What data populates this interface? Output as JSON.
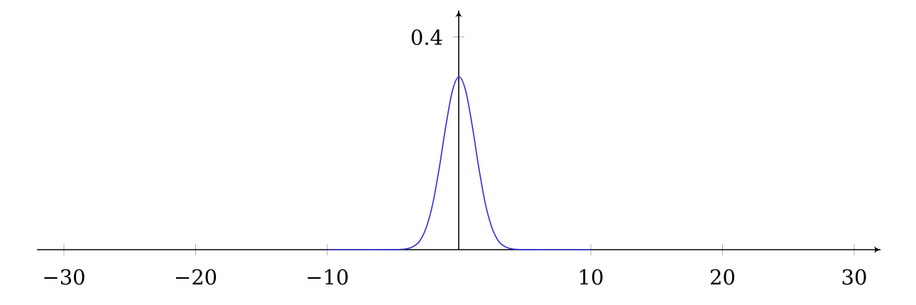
{
  "chart_data": {
    "type": "line",
    "title": "",
    "xlabel": "",
    "ylabel": "",
    "xlim": [
      -30,
      30
    ],
    "ylim": [
      0,
      0.4
    ],
    "x_ticks": [
      -30,
      -20,
      -10,
      10,
      20,
      30
    ],
    "x_tick_labels": [
      "−30",
      "−20",
      "−10",
      "10",
      "20",
      "30"
    ],
    "y_ticks": [
      0.4
    ],
    "y_tick_labels": [
      "0.4"
    ],
    "grid": false,
    "series": [
      {
        "color": "#2b2bd6",
        "x": [
          -10,
          -9,
          -8,
          -7,
          -6,
          -5,
          -4.5,
          -4,
          -3.5,
          -3,
          -2.5,
          -2,
          -1.5,
          -1,
          -0.5,
          0,
          0.5,
          1,
          1.5,
          2,
          2.5,
          3,
          3.5,
          4,
          4.5,
          5,
          6,
          7,
          8,
          9,
          10
        ],
        "y": [
          0,
          0,
          0,
          0,
          0,
          0.0001,
          0.0004,
          0.0016,
          0.0056,
          0.016,
          0.041,
          0.086,
          0.154,
          0.233,
          0.299,
          0.325,
          0.299,
          0.233,
          0.154,
          0.086,
          0.041,
          0.016,
          0.0056,
          0.0016,
          0.0004,
          0.0001,
          0,
          0,
          0,
          0,
          0
        ]
      }
    ]
  }
}
